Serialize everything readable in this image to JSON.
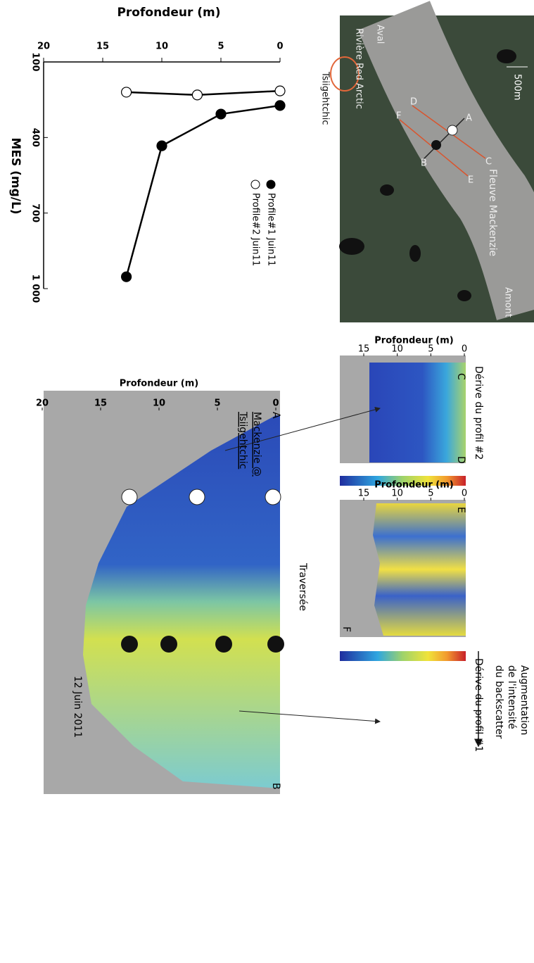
{
  "chart_data": {
    "type": "line",
    "xlabel": "Profondeur (m)",
    "ylabel": "MES (mg/L)",
    "xlim": [
      0,
      20
    ],
    "xticks": [
      0,
      5,
      10,
      15,
      20
    ],
    "ylim": [
      100,
      1000
    ],
    "yticks": [
      100,
      400,
      700,
      {
        "value": 1000,
        "label": "1 000"
      }
    ],
    "series": [
      {
        "name": "Profile#1 Juin11",
        "color": "#000000",
        "x": [
          0,
          5,
          10,
          13
        ],
        "values": [
          273,
          307,
          433,
          953
        ]
      },
      {
        "name": "Profile#2 Juin11",
        "color": "#ffffff",
        "x": [
          0,
          7,
          13
        ],
        "values": [
          215,
          231,
          220
        ]
      }
    ]
  },
  "map": {
    "downstream": "Aval",
    "upstream": "Amont",
    "river": "Fleuve Mackenzie",
    "tributary": "Rivière Red Arctic",
    "town": "Tsiigehtchic",
    "scale": "500m",
    "points": [
      "A",
      "B",
      "C",
      "D",
      "E",
      "F"
    ]
  },
  "panels": [
    {
      "title": "Dérive du profil #2",
      "ylabel": "Profondeur (m)",
      "yticks": [
        0,
        5,
        10,
        15
      ],
      "start": "C",
      "end": "D"
    },
    {
      "title": "Dérive du profil #1",
      "ylabel": "Profondeur (m)",
      "yticks": [
        0,
        5,
        10,
        15
      ],
      "start": "E",
      "end": "F"
    },
    {
      "title": "Traversée",
      "ylabel": "Profondeur (m)",
      "yticks": [
        0,
        5,
        10,
        15,
        20
      ],
      "start": "A",
      "end": "B",
      "site": [
        "Mackenzie @",
        "Tsiigehtchic"
      ],
      "date": "12 Juin 2011"
    }
  ],
  "colorbar_note": [
    "Augmentation",
    "de l'intensité",
    "du backscatter"
  ]
}
